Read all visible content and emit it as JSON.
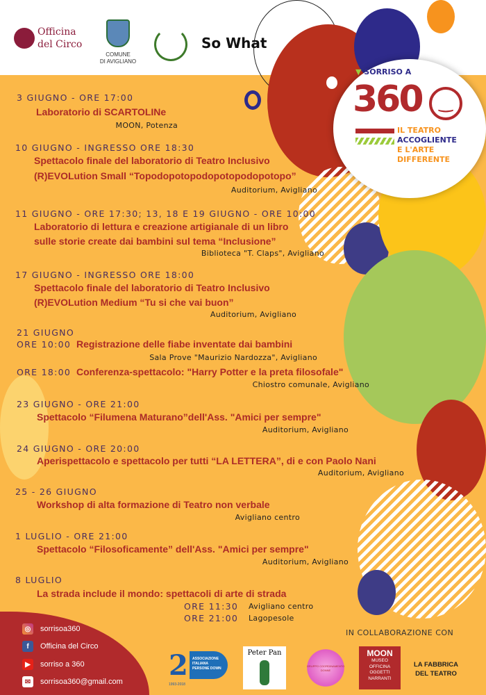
{
  "header": {
    "logos": [
      "Officina del Circo",
      "COMUNE DI AVIGLIANO",
      "So What"
    ],
    "comune_line1": "COMUNE",
    "comune_line2": "DI AVIGLIANO",
    "officina_l1": "Officina",
    "officina_l2": "del Circo"
  },
  "badge": {
    "line1": "SORRISO A",
    "number": "360",
    "sub1": "IL TEATRO",
    "sub2": "ACCOGLIENTE",
    "sub3": "E L'ARTE",
    "sub4": "DIFFERENTE"
  },
  "events": [
    {
      "date": "3 GIUGNO - ORE 17:00",
      "titles": [
        "Laboratorio di SCARTOLINe"
      ],
      "location": "MOON, Potenza"
    },
    {
      "date": "10 GIUGNO - INGRESSO ORE 18:30",
      "titles": [
        "Spettacolo finale del laboratorio di Teatro Inclusivo",
        "(R)EVOLution Small “Topodopotopodopotopodopotopo”"
      ],
      "location": "Auditorium, Avigliano"
    },
    {
      "date": "11 GIUGNO - ORE 17:30; 13, 18 E 19 GIUGNO - ORE 10:00",
      "titles": [
        "Laboratorio di lettura e creazione  artigianale di un libro",
        "sulle storie create dai  bambini sul  tema “Inclusione”"
      ],
      "location": "Biblioteca \"T. Claps\", Avigliano"
    },
    {
      "date": "17 GIUGNO - INGRESSO ORE 18:00",
      "titles": [
        "Spettacolo finale del laboratorio di Teatro Inclusivo",
        "(R)EVOLution Medium “Tu si che vai buon”"
      ],
      "location": "Auditorium, Avigliano"
    },
    {
      "date": "21 GIUGNO",
      "time1": "ORE 10:00",
      "title1": "Registrazione delle fiabe inventate dai bambini",
      "loc1": "Sala Prove \"Maurizio Nardozza\", Avigliano",
      "time2": "ORE 18:00",
      "title2": "Conferenza-spettacolo: \"Harry Potter e la preta filosofale\"",
      "loc2": "Chiostro comunale, Avigliano"
    },
    {
      "date": "23 GIUGNO - ORE 21:00",
      "titles": [
        "Spettacolo “Filumena  Maturano”dell'Ass. \"Amici per sempre\""
      ],
      "location": "Auditorium, Avigliano"
    },
    {
      "date": "24 GIUGNO - ORE 20:00",
      "titles": [
        "Aperispettacolo e spettacolo per tutti “LA LETTERA”, di e con Paolo Nani"
      ],
      "location": "Auditorium, Avigliano"
    },
    {
      "date": "25 - 26 GIUGNO",
      "titles": [
        "Workshop di alta formazione di Teatro non verbale"
      ],
      "location": "Avigliano centro"
    },
    {
      "date": "1 LUGLIO - ORE 21:00",
      "titles": [
        "Spettacolo “Filosoficamente” dell'Ass. \"Amici per sempre\""
      ],
      "location": "Auditorium, Avigliano"
    },
    {
      "date": "8 LUGLIO",
      "titles": [
        "La strada include il mondo: spettacoli di arte di strada"
      ],
      "time1": "ORE 11:30",
      "loc1": "Avigliano centro",
      "time2": "ORE 21:00",
      "loc2": "Lagopesole"
    }
  ],
  "social": [
    {
      "icon": "instagram-icon",
      "label": "sorrisoa360",
      "color": "#c13584"
    },
    {
      "icon": "facebook-icon",
      "label": "Officina del Circo",
      "color": "#3b5998"
    },
    {
      "icon": "youtube-icon",
      "label": "sorriso a 360",
      "color": "#e62117"
    },
    {
      "icon": "mail-icon",
      "label": "sorrisoa360@gmail.com",
      "color": "#b12a2c"
    }
  ],
  "collab": {
    "heading": "IN COLLABORAZIONE CON",
    "aipd": "ASSOCIAZIONE ITALIANA PERSONE DOWN",
    "aipd_years": "1993-2018",
    "peterpan": "Peter Pan",
    "gruppo": "GRUPPO COORDINAMENTO DONNE",
    "moon_l1": "MOON",
    "moon_l2": "MUSEO",
    "moon_l3": "OFFICINA",
    "moon_l4": "OGGETTI",
    "moon_l5": "NARRANTI",
    "fabbrica_l1": "LA FABBRICA",
    "fabbrica_l2": "DEL TEATRO"
  },
  "colors": {
    "background": "#fbb848",
    "date": "#4a2d5e",
    "title": "#ac2b27",
    "red": "#b12a2c",
    "navy": "#2e2a8a"
  }
}
